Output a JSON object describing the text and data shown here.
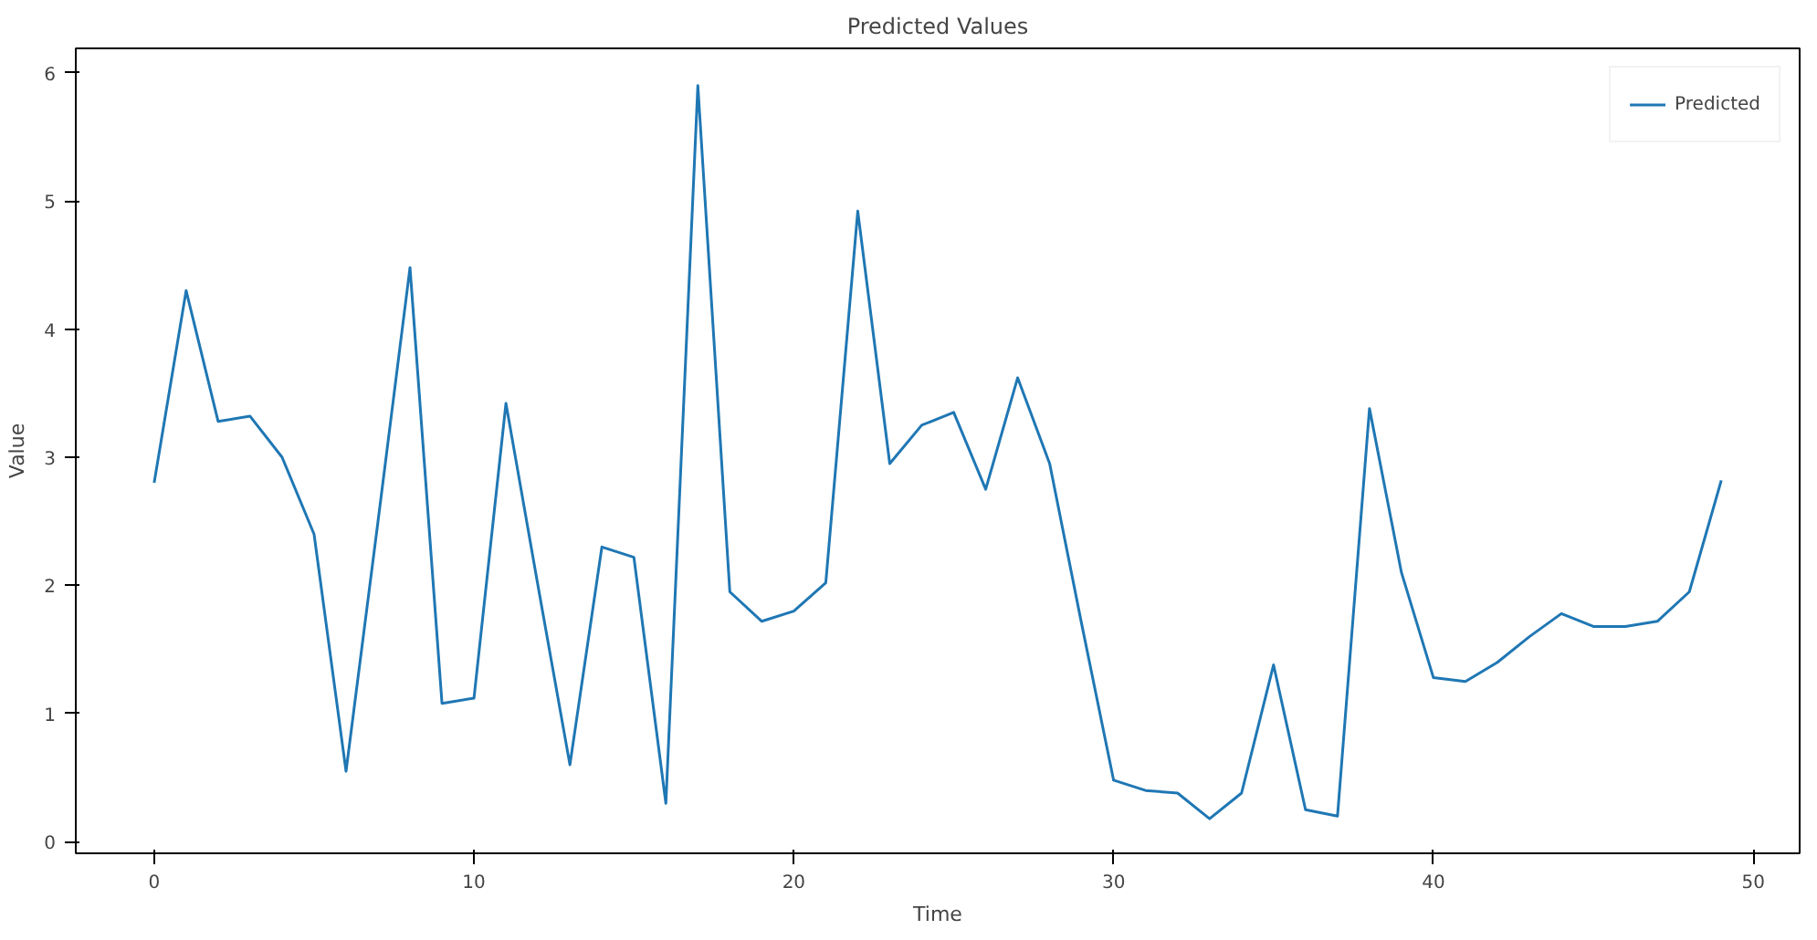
{
  "chart_data": {
    "type": "line",
    "title": "Predicted Values",
    "xlabel": "Time",
    "ylabel": "Value",
    "x": [
      0,
      1,
      2,
      3,
      4,
      5,
      6,
      7,
      8,
      9,
      10,
      11,
      12,
      13,
      14,
      15,
      16,
      17,
      18,
      19,
      20,
      21,
      22,
      23,
      24,
      25,
      26,
      27,
      28,
      29,
      30,
      31,
      32,
      33,
      34,
      35,
      36,
      37,
      38,
      39,
      40,
      41,
      42,
      43,
      44,
      45,
      46,
      47,
      48,
      49
    ],
    "series": [
      {
        "name": "Predicted",
        "color": "#1f77b4",
        "values": [
          2.8,
          4.3,
          3.28,
          3.32,
          3.0,
          2.4,
          0.55,
          2.5,
          4.48,
          1.08,
          1.12,
          3.42,
          2.0,
          0.6,
          2.3,
          2.22,
          0.3,
          5.9,
          1.95,
          1.72,
          1.8,
          2.02,
          4.92,
          2.95,
          3.25,
          3.35,
          2.75,
          3.62,
          2.95,
          1.7,
          0.48,
          0.4,
          0.38,
          0.18,
          0.38,
          1.38,
          0.25,
          0.2,
          3.38,
          2.1,
          1.28,
          1.25,
          1.4,
          1.6,
          1.78,
          1.68,
          1.68,
          1.72,
          1.95,
          2.82
        ]
      }
    ],
    "xlim": [
      -2.45,
      51.45
    ],
    "ylim": [
      -0.09,
      6.19
    ],
    "xticks": [
      0,
      10,
      20,
      30,
      40,
      50
    ],
    "yticks": [
      0,
      1,
      2,
      3,
      4,
      5,
      6
    ],
    "legend": "top right",
    "grid": false,
    "line_style": "solid"
  }
}
